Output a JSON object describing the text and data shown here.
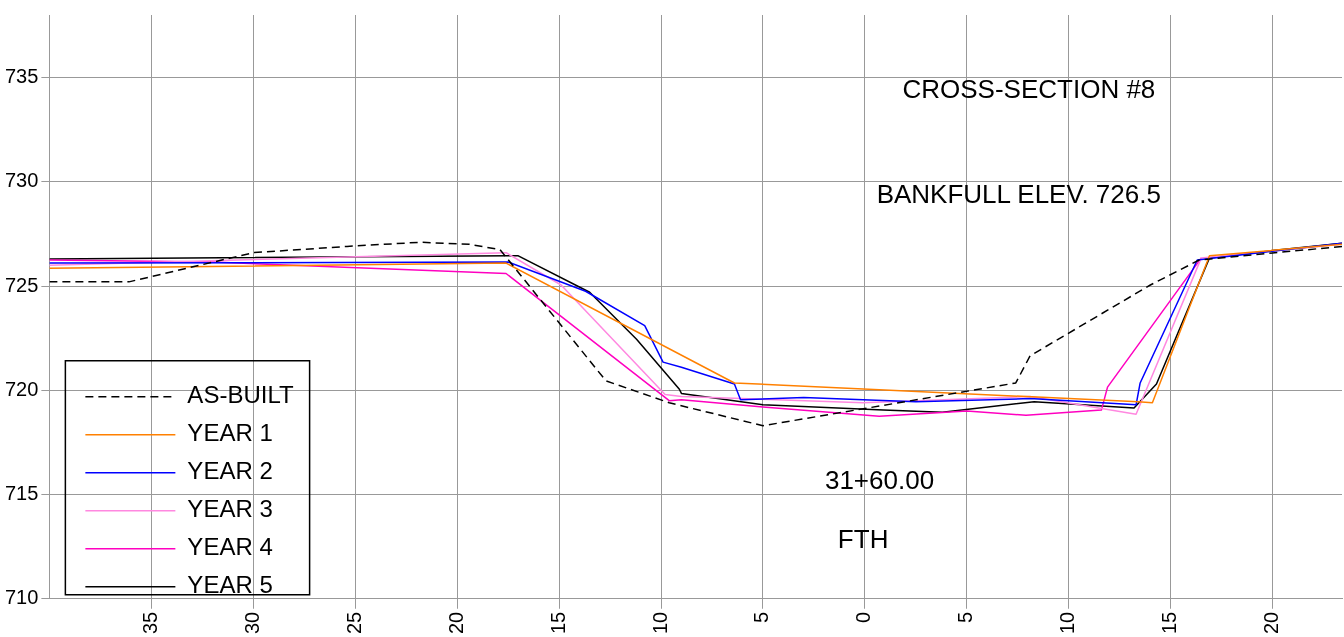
{
  "chart_data": {
    "type": "line",
    "annotations": [
      "CROSS-SECTION #8",
      "BANKFULL ELEV. 726.5",
      "31+60.00",
      "FTH"
    ],
    "xlim": [
      -40,
      23.4
    ],
    "ylim": [
      710,
      738
    ],
    "xticks": [
      {
        "value": -35,
        "label": "35"
      },
      {
        "value": -30,
        "label": "30"
      },
      {
        "value": -25,
        "label": "25"
      },
      {
        "value": -20,
        "label": "20"
      },
      {
        "value": -15,
        "label": "15"
      },
      {
        "value": -10,
        "label": "10"
      },
      {
        "value": -5,
        "label": "5"
      },
      0,
      5,
      10,
      15,
      20
    ],
    "yticks": [
      710,
      715,
      720,
      725,
      730,
      735
    ],
    "grid": true,
    "legend": "bottom left",
    "marker": "none",
    "series": [
      {
        "name": "AS-BUILT",
        "color": "#000000",
        "line_style": "dashed",
        "x": [
          -40,
          -36.1,
          -30,
          -25.4,
          -21.8,
          -19.4,
          -17.9,
          -12.7,
          -9.6,
          -5,
          7.4,
          8.1,
          14,
          16.4,
          23.4
        ],
        "values": [
          725.2,
          725.2,
          726.6,
          726.9,
          727.1,
          727.0,
          726.75,
          720.45,
          719.4,
          718.3,
          720.35,
          721.65,
          725.05,
          726.25,
          726.9
        ]
      },
      {
        "name": "YEAR 1",
        "color": "#ff8000",
        "line_style": "solid",
        "x": [
          -40,
          -17.6,
          -6.4,
          13.4,
          14.1,
          16.9,
          23.4
        ],
        "values": [
          725.85,
          726.1,
          720.35,
          719.45,
          719.4,
          726.45,
          727.0
        ]
      },
      {
        "name": "YEAR 2",
        "color": "#0000ff",
        "line_style": "solid",
        "x": [
          -40,
          -17.5,
          -13.7,
          -10.8,
          -9.9,
          -9.0,
          -6.4,
          -6.1,
          -3.0,
          2.5,
          8.1,
          13.3,
          13.5,
          16.3,
          23.4
        ],
        "values": [
          726.1,
          726.15,
          724.75,
          723.1,
          721.35,
          721.1,
          720.3,
          719.55,
          719.65,
          719.45,
          719.6,
          719.3,
          720.35,
          726.25,
          727.05
        ]
      },
      {
        "name": "YEAR 3",
        "color": "#ff88e0",
        "line_style": "solid",
        "x": [
          -40,
          -17.6,
          -14.9,
          -9.8,
          -9.0,
          -0.1,
          8.1,
          13.3,
          16.5,
          23.4
        ],
        "values": [
          726.0,
          726.6,
          725.05,
          719.8,
          719.7,
          719.4,
          719.7,
          718.85,
          726.35,
          727.0
        ]
      },
      {
        "name": "YEAR 4",
        "color": "#ff00c0",
        "line_style": "solid",
        "x": [
          -40,
          -32.0,
          -17.6,
          -9.6,
          -9.0,
          -5.0,
          0.7,
          5.0,
          7.9,
          11.6,
          11.9,
          16.5
        ],
        "values": [
          726.25,
          726.15,
          725.6,
          719.5,
          719.55,
          719.2,
          718.75,
          719.0,
          718.8,
          719.05,
          720.15,
          726.35
        ]
      },
      {
        "name": "YEAR 5",
        "color": "#000000",
        "line_style": "solid",
        "x": [
          -40,
          -17.0,
          -13.5,
          -11.2,
          -9.1,
          -9.0,
          -5.0,
          0.9,
          3.8,
          8.3,
          13.2,
          14.3,
          16.9,
          20.0,
          23.4
        ],
        "values": [
          726.3,
          726.45,
          724.7,
          722.45,
          720.05,
          719.85,
          719.3,
          719.05,
          718.95,
          719.45,
          719.15,
          720.3,
          726.35,
          726.7,
          727.05
        ]
      }
    ]
  }
}
